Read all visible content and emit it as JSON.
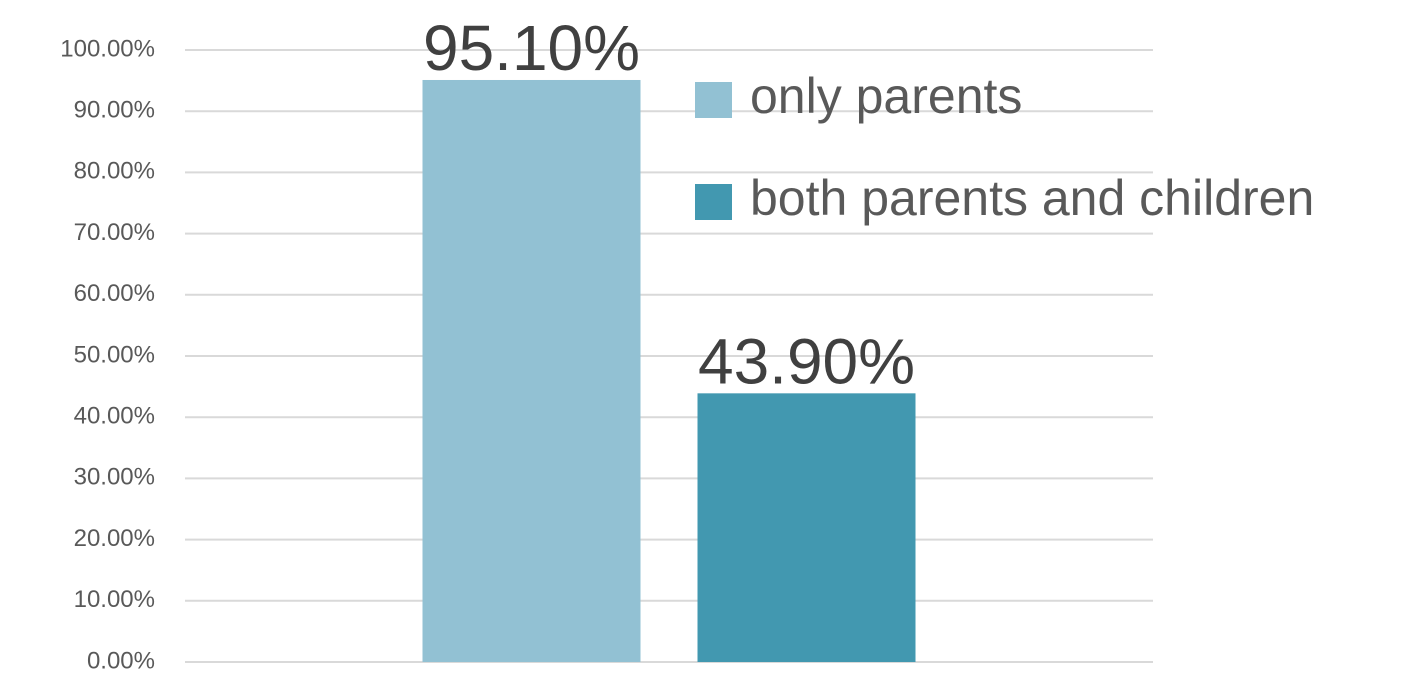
{
  "chart_data": {
    "type": "bar",
    "categories": [
      null
    ],
    "series": [
      {
        "name": "only parents",
        "color": "#92c1d3",
        "values": [
          95.1
        ],
        "value_labels": [
          "95.10%"
        ]
      },
      {
        "name": "both parents and children",
        "color": "#4298b0",
        "values": [
          43.9
        ],
        "value_labels": [
          "43.90%"
        ]
      }
    ],
    "ylim": [
      0,
      100
    ],
    "yticks": [
      {
        "value": 0,
        "label": "0.00%"
      },
      {
        "value": 10,
        "label": "10.00%"
      },
      {
        "value": 20,
        "label": "20.00%"
      },
      {
        "value": 30,
        "label": "30.00%"
      },
      {
        "value": 40,
        "label": "40.00%"
      },
      {
        "value": 50,
        "label": "50.00%"
      },
      {
        "value": 60,
        "label": "60.00%"
      },
      {
        "value": 70,
        "label": "70.00%"
      },
      {
        "value": 80,
        "label": "80.00%"
      },
      {
        "value": 90,
        "label": "90.00%"
      },
      {
        "value": 100,
        "label": "100.00%"
      }
    ],
    "grid": true,
    "legend": "right"
  }
}
